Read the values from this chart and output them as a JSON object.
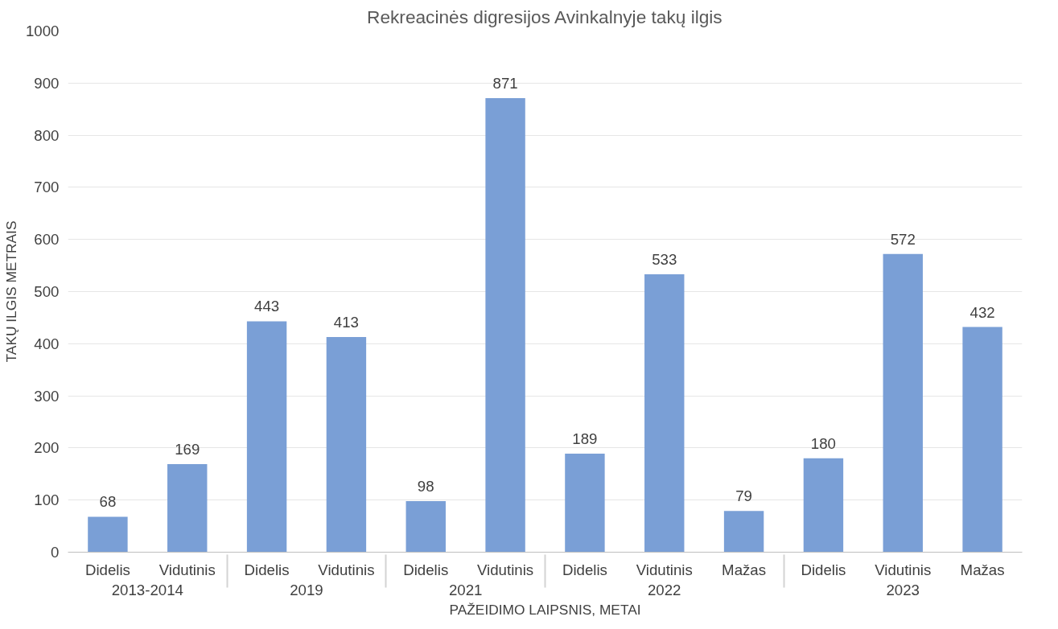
{
  "chart_data": {
    "type": "bar",
    "title": "Rekreacinės digresijos Avinkalnyje takų ilgis",
    "xlabel": "PAŽEIDIMO LAIPSNIS, METAI",
    "ylabel": "TAKŲ ILGIS METRAIS",
    "categories": [
      "Didelis",
      "Vidutinis",
      "Didelis",
      "Vidutinis",
      "Didelis",
      "Vidutinis",
      "Didelis",
      "Vidutinis",
      "Mažas",
      "Didelis",
      "Vidutinis",
      "Mažas"
    ],
    "series": [
      {
        "name": "2013-2014",
        "color": "#7a9fd6",
        "values": [
          68,
          169,
          null,
          null,
          null,
          null,
          null,
          null,
          null,
          null,
          null,
          null
        ]
      },
      {
        "name": "2019",
        "color": "#7a9fd6",
        "values": [
          null,
          null,
          443,
          413,
          null,
          null,
          null,
          null,
          null,
          null,
          null,
          null
        ]
      },
      {
        "name": "2021",
        "color": "#7a9fd6",
        "values": [
          null,
          null,
          null,
          null,
          98,
          871,
          null,
          null,
          null,
          null,
          null,
          null
        ]
      },
      {
        "name": "2022",
        "color": "#7a9fd6",
        "values": [
          null,
          null,
          null,
          null,
          null,
          null,
          189,
          533,
          79,
          null,
          null,
          null
        ]
      },
      {
        "name": "2023",
        "color": "#7a9fd6",
        "values": [
          null,
          null,
          null,
          null,
          null,
          null,
          null,
          null,
          null,
          180,
          572,
          432
        ]
      }
    ],
    "ylim": [
      0,
      1000
    ],
    "yticks": [
      0,
      100,
      200,
      300,
      400,
      500,
      600,
      700,
      800,
      900,
      1000
    ],
    "grid": "y",
    "data_labels": true
  }
}
